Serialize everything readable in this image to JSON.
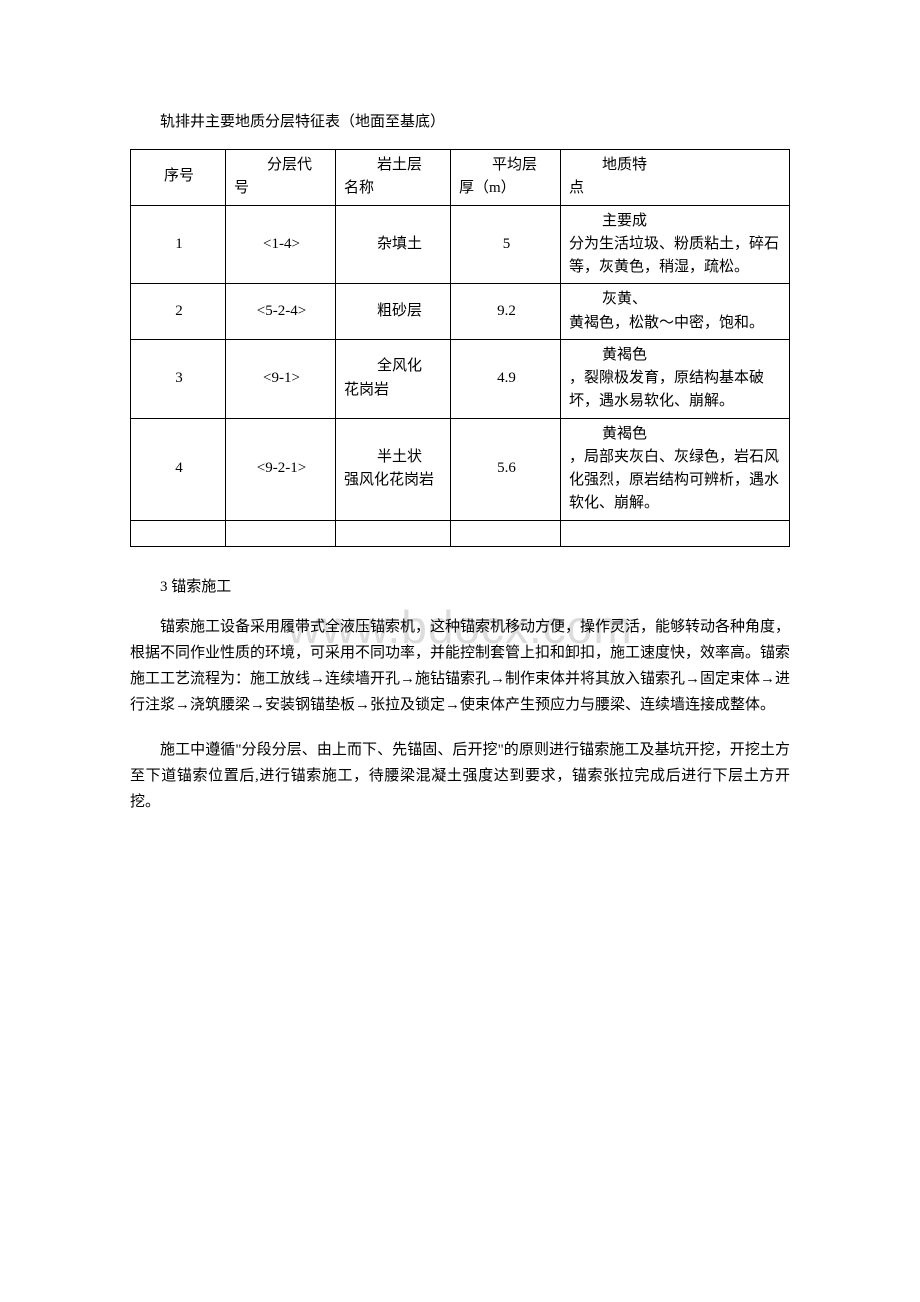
{
  "caption": "轨排井主要地质分层特征表（地面至基底）",
  "watermark": "www.bdocx.com",
  "table": {
    "headers": {
      "seq": "序号",
      "code_top": "分层代",
      "code_bot": "号",
      "name_top": "岩土层",
      "name_bot": "名称",
      "thick_top": "平均层",
      "thick_bot": "厚（m）",
      "desc_top": "地质特",
      "desc_bot": "点"
    },
    "rows": [
      {
        "seq": "1",
        "code": "<1-4>",
        "name1": "杂填土",
        "name2": "",
        "thick": "5",
        "desc1": "主要成",
        "desc2": "分为生活垃圾、粉质粘土，碎石等，灰黄色，稍湿，疏松。"
      },
      {
        "seq": "2",
        "code": "<5-2-4>",
        "name1": "粗砂层",
        "name2": "",
        "thick": "9.2",
        "desc1": "灰黄、",
        "desc2": "黄褐色，松散～中密，饱和。"
      },
      {
        "seq": "3",
        "code": "<9-1>",
        "name1": "全风化",
        "name2": "花岗岩",
        "thick": "4.9",
        "desc1": "黄褐色",
        "desc2": "，裂隙极发育，原结构基本破坏，遇水易软化、崩解。"
      },
      {
        "seq": "4",
        "code": "<9-2-1>",
        "name1": "半土状",
        "name2": "强风化花岗岩",
        "thick": "5.6",
        "desc1": "黄褐色",
        "desc2": "，局部夹灰白、灰绿色，岩石风化强烈，原岩结构可辨析，遇水软化、崩解。"
      }
    ]
  },
  "section_title": "3 锚索施工",
  "para1": "锚索施工设备采用履带式全液压锚索机，这种锚索机移动方便，操作灵活，能够转动各种角度，根据不同作业性质的环境，可采用不同功率，并能控制套管上扣和卸扣，施工速度快，效率高。锚索施工工艺流程为：施工放线→连续墙开孔→施钻锚索孔→制作束体并将其放入锚索孔→固定束体→进行注浆→浇筑腰梁→安装钢锚垫板→张拉及锁定→使束体产生预应力与腰梁、连续墙连接成整体。",
  "para2": "施工中遵循\"分段分层、由上而下、先锚固、后开挖\"的原则进行锚索施工及基坑开挖，开挖土方至下道锚索位置后,进行锚索施工，待腰梁混凝土强度达到要求，锚索张拉完成后进行下层土方开挖。"
}
